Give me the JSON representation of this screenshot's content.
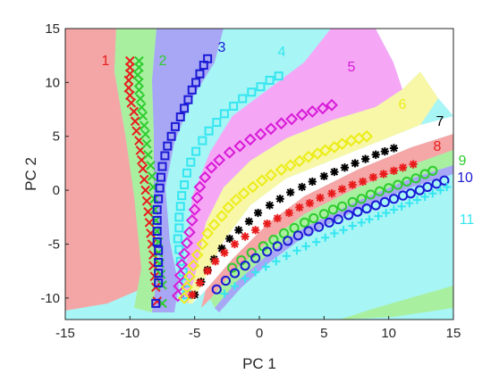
{
  "chart_data": {
    "type": "scatter",
    "title": "",
    "xlabel": "PC 1",
    "ylabel": "PC 2",
    "xlim": [
      -15,
      15
    ],
    "ylim": [
      -12,
      15
    ],
    "xticks": [
      -15,
      -10,
      -5,
      0,
      5,
      10,
      15
    ],
    "yticks": [
      -10,
      -5,
      0,
      5,
      10,
      15
    ],
    "grid": false,
    "legend": "none; series numbered 1-11 with colored labels next to each trajectory",
    "background": "class decision regions (filled areas) under the markers",
    "region_colors": [
      "#f4a6a6",
      "#a8f0a0",
      "#a7a7f5",
      "#a7f5f5",
      "#f5a7f5",
      "#f7f7a7",
      "#ffffff",
      "#f5c6c6"
    ],
    "series": [
      {
        "name": "1",
        "marker": "x",
        "color": "#e81c1c",
        "points": [
          [
            -10,
            12
          ],
          [
            -10,
            11.4
          ],
          [
            -10,
            10.8
          ],
          [
            -10.1,
            10.2
          ],
          [
            -10.1,
            9.5
          ],
          [
            -10,
            8.8
          ],
          [
            -9.9,
            8.1
          ],
          [
            -9.7,
            7.3
          ],
          [
            -9.6,
            6.4
          ],
          [
            -9.5,
            5.5
          ],
          [
            -9.3,
            4.6
          ],
          [
            -9.2,
            3.7
          ],
          [
            -9.1,
            2.8
          ],
          [
            -9,
            2
          ],
          [
            -8.9,
            1
          ],
          [
            -8.8,
            0
          ],
          [
            -8.7,
            -1
          ],
          [
            -8.6,
            -2
          ],
          [
            -8.5,
            -3
          ],
          [
            -8.4,
            -4
          ],
          [
            -8.3,
            -5
          ],
          [
            -8.2,
            -6
          ],
          [
            -8.2,
            -7
          ],
          [
            -8.1,
            -8
          ],
          [
            -8,
            -9
          ],
          [
            -7.9,
            -10.3
          ]
        ]
      },
      {
        "name": "2",
        "marker": "x",
        "color": "#2ecc2e",
        "points": [
          [
            -9.3,
            12
          ],
          [
            -9.3,
            11.4
          ],
          [
            -9.4,
            10.7
          ],
          [
            -9.3,
            10
          ],
          [
            -9.3,
            9.3
          ],
          [
            -9.2,
            8.5
          ],
          [
            -9.1,
            7.7
          ],
          [
            -9,
            6.9
          ],
          [
            -8.9,
            6
          ],
          [
            -8.8,
            5.2
          ],
          [
            -8.7,
            4.3
          ],
          [
            -8.6,
            3.3
          ],
          [
            -8.4,
            2.3
          ],
          [
            -8.3,
            1.3
          ],
          [
            -8.2,
            0.3
          ],
          [
            -8.1,
            -0.8
          ],
          [
            -8.1,
            -1.8
          ],
          [
            -8,
            -2.8
          ],
          [
            -7.9,
            -3.8
          ],
          [
            -7.8,
            -4.8
          ],
          [
            -7.8,
            -5.8
          ],
          [
            -7.7,
            -6.8
          ],
          [
            -7.6,
            -7.8
          ],
          [
            -7.5,
            -8.8
          ],
          [
            -7.5,
            -10.5
          ]
        ]
      },
      {
        "name": "3",
        "marker": "square",
        "color": "#1a1ad6",
        "points": [
          [
            -4,
            12.2
          ],
          [
            -4.3,
            11.6
          ],
          [
            -4.6,
            10.8
          ],
          [
            -4.9,
            10
          ],
          [
            -5.2,
            9.3
          ],
          [
            -5.5,
            8.4
          ],
          [
            -5.8,
            7.6
          ],
          [
            -6.1,
            6.8
          ],
          [
            -6.5,
            5.9
          ],
          [
            -6.8,
            5
          ],
          [
            -7.1,
            4.1
          ],
          [
            -7.3,
            3.2
          ],
          [
            -7.5,
            2.2
          ],
          [
            -7.6,
            1.2
          ],
          [
            -7.7,
            0.2
          ],
          [
            -7.8,
            -0.8
          ],
          [
            -7.9,
            -1.8
          ],
          [
            -7.9,
            -2.8
          ],
          [
            -7.9,
            -3.8
          ],
          [
            -7.9,
            -4.8
          ],
          [
            -7.8,
            -5.6
          ],
          [
            -7.8,
            -6.7
          ],
          [
            -7.8,
            -7.7
          ],
          [
            -7.8,
            -8.6
          ],
          [
            -8,
            -10.5
          ]
        ]
      },
      {
        "name": "4",
        "marker": "square",
        "color": "#35e6f0",
        "points": [
          [
            1.5,
            10.6
          ],
          [
            0.8,
            10.2
          ],
          [
            0.1,
            9.6
          ],
          [
            -0.6,
            9.1
          ],
          [
            -1.3,
            8.5
          ],
          [
            -2,
            7.8
          ],
          [
            -2.7,
            7.1
          ],
          [
            -3.3,
            6.3
          ],
          [
            -3.9,
            5.5
          ],
          [
            -4.4,
            4.6
          ],
          [
            -4.9,
            3.6
          ],
          [
            -5.3,
            2.6
          ],
          [
            -5.6,
            1.6
          ],
          [
            -5.8,
            0.5
          ],
          [
            -6,
            -0.5
          ],
          [
            -6.1,
            -1.5
          ],
          [
            -6.2,
            -2.5
          ],
          [
            -6.2,
            -3.5
          ],
          [
            -6.3,
            -4.5
          ],
          [
            -6.2,
            -5.5
          ],
          [
            -6.1,
            -6.6
          ],
          [
            -5.9,
            -7.6
          ],
          [
            -5.7,
            -8.6
          ],
          [
            -5.6,
            -9.7
          ]
        ]
      },
      {
        "name": "5",
        "marker": "diamond",
        "color": "#d81ad8",
        "points": [
          [
            5.6,
            7.9
          ],
          [
            4.9,
            7.6
          ],
          [
            4.1,
            7.3
          ],
          [
            3.3,
            7
          ],
          [
            2.5,
            6.6
          ],
          [
            1.7,
            6.2
          ],
          [
            0.9,
            5.7
          ],
          [
            0.1,
            5.2
          ],
          [
            -0.7,
            4.7
          ],
          [
            -1.5,
            4.1
          ],
          [
            -2.3,
            3.5
          ],
          [
            -3.1,
            2.8
          ],
          [
            -3.7,
            2.1
          ],
          [
            -4.2,
            1.2
          ],
          [
            -4.6,
            0.3
          ],
          [
            -4.8,
            -0.7
          ],
          [
            -5,
            -1.8
          ],
          [
            -5.2,
            -2.8
          ],
          [
            -5.4,
            -3.9
          ],
          [
            -5.6,
            -4.9
          ],
          [
            -5.8,
            -5.9
          ],
          [
            -6,
            -6.9
          ],
          [
            -6.1,
            -7.9
          ],
          [
            -6.2,
            -8.9
          ],
          [
            -6.3,
            -9.8
          ]
        ]
      },
      {
        "name": "6",
        "marker": "diamond",
        "color": "#ecec1a",
        "points": [
          [
            8.3,
            5
          ],
          [
            7.7,
            4.8
          ],
          [
            7.1,
            4.6
          ],
          [
            6.4,
            4.3
          ],
          [
            5.8,
            4
          ],
          [
            5.1,
            3.7
          ],
          [
            4.5,
            3.4
          ],
          [
            3.8,
            3.1
          ],
          [
            3.1,
            2.7
          ],
          [
            2.4,
            2.3
          ],
          [
            1.7,
            1.9
          ],
          [
            0.9,
            1.4
          ],
          [
            0.2,
            0.9
          ],
          [
            -0.5,
            0.3
          ],
          [
            -1.2,
            -0.3
          ],
          [
            -1.8,
            -0.9
          ],
          [
            -2.4,
            -1.6
          ],
          [
            -2.9,
            -2.4
          ],
          [
            -3.5,
            -3.2
          ],
          [
            -4,
            -4
          ],
          [
            -4.4,
            -5
          ],
          [
            -4.8,
            -6
          ],
          [
            -5.1,
            -7
          ],
          [
            -5.4,
            -8
          ],
          [
            -5.6,
            -9
          ],
          [
            -5.8,
            -10
          ]
        ]
      },
      {
        "name": "7",
        "marker": "asterisk",
        "color": "#000000",
        "points": [
          [
            10.4,
            3.9
          ],
          [
            9.7,
            3.6
          ],
          [
            9,
            3.3
          ],
          [
            8.2,
            2.9
          ],
          [
            7.4,
            2.5
          ],
          [
            6.6,
            2.1
          ],
          [
            5.8,
            1.7
          ],
          [
            5,
            1.3
          ],
          [
            4.1,
            0.8
          ],
          [
            3.3,
            0.3
          ],
          [
            2.4,
            -0.2
          ],
          [
            1.6,
            -0.8
          ],
          [
            0.8,
            -1.4
          ],
          [
            -0.1,
            -2.1
          ],
          [
            -0.8,
            -2.9
          ],
          [
            -1.6,
            -3.7
          ],
          [
            -2.3,
            -4.5
          ],
          [
            -2.9,
            -5.4
          ],
          [
            -3.5,
            -6.4
          ],
          [
            -4,
            -7.4
          ],
          [
            -4.5,
            -8.5
          ],
          [
            -5,
            -9.7
          ]
        ]
      },
      {
        "name": "8",
        "marker": "asterisk",
        "color": "#e81c1c",
        "points": [
          [
            11.9,
            2.4
          ],
          [
            11.1,
            2.1
          ],
          [
            10.4,
            1.8
          ],
          [
            9.6,
            1.5
          ],
          [
            8.8,
            1.2
          ],
          [
            8,
            0.8
          ],
          [
            7.2,
            0.5
          ],
          [
            6.4,
            0.1
          ],
          [
            5.6,
            -0.3
          ],
          [
            4.7,
            -0.7
          ],
          [
            3.9,
            -1.2
          ],
          [
            3.1,
            -1.6
          ],
          [
            2.3,
            -2.1
          ],
          [
            1.4,
            -2.6
          ],
          [
            0.6,
            -3.1
          ],
          [
            -0.3,
            -3.7
          ],
          [
            -1.1,
            -4.3
          ],
          [
            -1.9,
            -5
          ],
          [
            -2.7,
            -5.8
          ],
          [
            -3.4,
            -6.6
          ],
          [
            -4,
            -7.5
          ],
          [
            -4.6,
            -8.6
          ],
          [
            -5.2,
            -9.7
          ]
        ]
      },
      {
        "name": "9",
        "marker": "circle",
        "color": "#2ecc2e",
        "points": [
          [
            13.4,
            1.8
          ],
          [
            12.8,
            1.5
          ],
          [
            12.1,
            1.1
          ],
          [
            11.4,
            0.8
          ],
          [
            10.7,
            0.5
          ],
          [
            10,
            0.2
          ],
          [
            9.3,
            -0.1
          ],
          [
            8.6,
            -0.4
          ],
          [
            7.9,
            -0.8
          ],
          [
            7.2,
            -1.1
          ],
          [
            6.4,
            -1.5
          ],
          [
            5.7,
            -1.8
          ],
          [
            5,
            -2.2
          ],
          [
            4.2,
            -2.6
          ],
          [
            3.5,
            -3
          ],
          [
            2.7,
            -3.5
          ],
          [
            1.9,
            -4
          ],
          [
            1.1,
            -4.6
          ],
          [
            0.3,
            -5.2
          ],
          [
            -0.6,
            -5.8
          ],
          [
            -1.4,
            -6.5
          ],
          [
            -2.1,
            -7.2
          ]
        ]
      },
      {
        "name": "10",
        "marker": "circle",
        "color": "#1a1ad6",
        "points": [
          [
            14.3,
            0.9
          ],
          [
            13.7,
            0.6
          ],
          [
            13,
            0.3
          ],
          [
            12.4,
            0
          ],
          [
            11.7,
            -0.3
          ],
          [
            11.1,
            -0.5
          ],
          [
            10.4,
            -0.8
          ],
          [
            9.7,
            -1.1
          ],
          [
            9,
            -1.4
          ],
          [
            8.3,
            -1.7
          ],
          [
            7.6,
            -2
          ],
          [
            6.9,
            -2.3
          ],
          [
            6.1,
            -2.7
          ],
          [
            5.4,
            -3
          ],
          [
            4.6,
            -3.4
          ],
          [
            3.8,
            -3.8
          ],
          [
            3,
            -4.2
          ],
          [
            2.2,
            -4.7
          ],
          [
            1.4,
            -5.2
          ],
          [
            0.6,
            -5.7
          ],
          [
            -0.3,
            -6.3
          ],
          [
            -1.1,
            -7
          ],
          [
            -1.9,
            -7.7
          ],
          [
            -2.6,
            -8.4
          ],
          [
            -3.3,
            -9.2
          ]
        ]
      },
      {
        "name": "11",
        "marker": "plus",
        "color": "#35e6f0",
        "points": [
          [
            14.5,
            0.3
          ],
          [
            14,
            0
          ],
          [
            13.4,
            -0.3
          ],
          [
            12.8,
            -0.6
          ],
          [
            12.2,
            -0.9
          ],
          [
            11.6,
            -1.2
          ],
          [
            11,
            -1.5
          ],
          [
            10.4,
            -1.8
          ],
          [
            9.8,
            -2.1
          ],
          [
            9.2,
            -2.4
          ],
          [
            8.5,
            -2.7
          ],
          [
            7.9,
            -3
          ],
          [
            7.2,
            -3.3
          ],
          [
            6.5,
            -3.7
          ],
          [
            5.8,
            -4
          ],
          [
            5.1,
            -4.4
          ],
          [
            4.4,
            -4.8
          ],
          [
            3.6,
            -5.2
          ],
          [
            2.9,
            -5.6
          ],
          [
            2.1,
            -6.1
          ],
          [
            1.3,
            -6.6
          ],
          [
            0.5,
            -7.1
          ],
          [
            -0.3,
            -7.6
          ],
          [
            -1.1,
            -8.2
          ],
          [
            -1.9,
            -8.9
          ],
          [
            -2.7,
            -9.6
          ]
        ]
      }
    ]
  }
}
